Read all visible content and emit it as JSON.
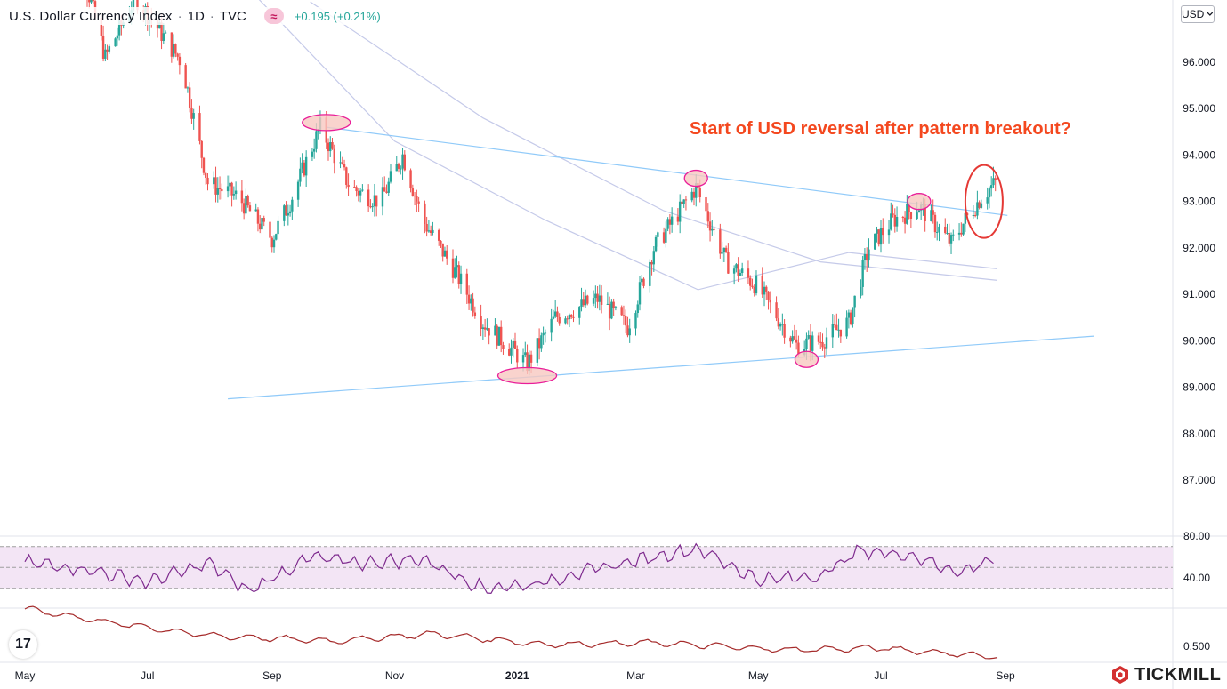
{
  "header": {
    "title": "U.S. Dollar Currency Index",
    "interval": "1D",
    "source": "TVC",
    "separator": "·",
    "indicator_glyph": "≈",
    "change": "+0.195 (+0.21%)"
  },
  "currency_selector": {
    "value": "USD",
    "icon": "chevron-down-icon"
  },
  "annotation": "Start of USD reversal after pattern breakout?",
  "brand": {
    "name": "TICKMILL",
    "logo_icon": "tickmill-logo-icon"
  },
  "tv_logo": {
    "label": "17",
    "icon": "tradingview-logo-icon"
  },
  "colors": {
    "up": "#26a69a",
    "down": "#ef5350",
    "trendline": "#90caf9",
    "ma": "#c5cae9",
    "rsi_line": "#7e2a8e",
    "rsi_band": "#f3e5f5",
    "lower_line": "#a52a2a",
    "highlight_stroke": "#e91e99",
    "highlight_fill": "#f8c8c0",
    "breakout_circle": "#e53935",
    "annotation": "#f4481f"
  },
  "chart_data": [
    {
      "type": "candlestick",
      "ylim": [
        87.0,
        97.0
      ],
      "y_ticks": [
        "96.000",
        "95.000",
        "94.000",
        "93.000",
        "92.000",
        "91.000",
        "90.000",
        "89.000",
        "88.000",
        "87.000"
      ],
      "x_ticks": [
        "May",
        "Jul",
        "Sep",
        "Nov",
        "2021",
        "Mar",
        "May",
        "Jul",
        "Sep"
      ],
      "close_path": [
        [
          "2020-05-20",
          99.6
        ],
        [
          "2020-06-10",
          96.1
        ],
        [
          "2020-06-25",
          97.4
        ],
        [
          "2020-07-05",
          96.8
        ],
        [
          "2020-07-18",
          96.0
        ],
        [
          "2020-07-31",
          93.4
        ],
        [
          "2020-08-15",
          93.1
        ],
        [
          "2020-09-01",
          92.2
        ],
        [
          "2020-09-10",
          93.0
        ],
        [
          "2020-09-25",
          94.6
        ],
        [
          "2020-10-10",
          93.3
        ],
        [
          "2020-10-25",
          93.0
        ],
        [
          "2020-11-05",
          94.0
        ],
        [
          "2020-11-15",
          92.6
        ],
        [
          "2020-12-01",
          91.5
        ],
        [
          "2020-12-15",
          90.4
        ],
        [
          "2021-01-06",
          89.5
        ],
        [
          "2021-01-20",
          90.5
        ],
        [
          "2021-02-10",
          90.9
        ],
        [
          "2021-02-25",
          90.3
        ],
        [
          "2021-03-10",
          92.0
        ],
        [
          "2021-03-31",
          93.3
        ],
        [
          "2021-04-15",
          91.7
        ],
        [
          "2021-04-30",
          91.2
        ],
        [
          "2021-05-20",
          89.9
        ],
        [
          "2021-06-01",
          90.0
        ],
        [
          "2021-06-15",
          90.4
        ],
        [
          "2021-06-25",
          92.0
        ],
        [
          "2021-07-07",
          92.6
        ],
        [
          "2021-07-20",
          92.9
        ],
        [
          "2021-08-05",
          92.1
        ],
        [
          "2021-08-12",
          92.6
        ],
        [
          "2021-08-20",
          93.1
        ],
        [
          "2021-08-27",
          93.4
        ]
      ],
      "upper_trendline": [
        [
          "2020-09-28",
          94.6
        ],
        [
          "2021-09-02",
          92.7
        ]
      ],
      "lower_trendline": [
        [
          "2020-08-10",
          88.75
        ],
        [
          "2021-10-15",
          90.1
        ]
      ],
      "moving_averages": [
        {
          "points": [
            [
              "2020-08-20",
              97.6
            ],
            [
              "2020-11-01",
              94.3
            ],
            [
              "2021-01-15",
              92.6
            ],
            [
              "2021-04-01",
              91.1
            ],
            [
              "2021-06-15",
              91.9
            ],
            [
              "2021-08-28",
              91.55
            ]
          ]
        },
        {
          "points": [
            [
              "2020-09-20",
              97.3
            ],
            [
              "2020-12-15",
              94.8
            ],
            [
              "2021-03-15",
              92.8
            ],
            [
              "2021-06-01",
              91.7
            ],
            [
              "2021-08-28",
              91.3
            ]
          ]
        }
      ],
      "highlights": [
        {
          "date": "2020-09-28",
          "value": 94.7,
          "shape": "ellipse"
        },
        {
          "date": "2021-01-06",
          "value": 89.25,
          "shape": "ellipse"
        },
        {
          "date": "2021-03-31",
          "value": 93.5,
          "shape": "ellipse"
        },
        {
          "date": "2021-05-25",
          "value": 89.6,
          "shape": "ellipse"
        },
        {
          "date": "2021-07-20",
          "value": 93.0,
          "shape": "ellipse"
        }
      ],
      "breakout_marker": {
        "date": "2021-08-20",
        "value": 93.0
      }
    },
    {
      "type": "line",
      "name": "RSI",
      "ylim": [
        20,
        80
      ],
      "y_ticks": [
        "80.00",
        "40.00"
      ],
      "band": [
        30,
        70
      ],
      "levels": [
        30,
        50,
        70
      ],
      "x": [
        "2020-05-01",
        "2020-06-01",
        "2020-07-01",
        "2020-08-01",
        "2020-08-20",
        "2020-09-20",
        "2020-10-15",
        "2020-11-15",
        "2020-12-15",
        "2021-01-10",
        "2021-02-01",
        "2021-03-15",
        "2021-04-01",
        "2021-05-01",
        "2021-06-01",
        "2021-06-20",
        "2021-07-15",
        "2021-08-10",
        "2021-08-27"
      ],
      "values": [
        55,
        48,
        36,
        54,
        27,
        60,
        54,
        58,
        30,
        34,
        45,
        62,
        68,
        38,
        42,
        66,
        62,
        45,
        60
      ]
    },
    {
      "type": "line",
      "name": "lower indicator",
      "y_ticks": [
        "0.500"
      ],
      "ylim": [
        0.44,
        0.62
      ],
      "x": [
        "2020-05-01",
        "2020-06-15",
        "2020-08-01",
        "2020-10-01",
        "2020-11-20",
        "2021-01-15",
        "2021-03-10",
        "2021-05-15",
        "2021-07-01",
        "2021-08-28"
      ],
      "values": [
        0.605,
        0.565,
        0.53,
        0.515,
        0.535,
        0.505,
        0.51,
        0.49,
        0.495,
        0.47
      ]
    }
  ]
}
